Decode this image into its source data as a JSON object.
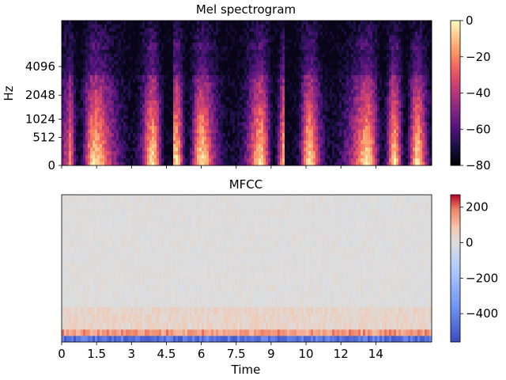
{
  "chart_data": [
    {
      "type": "heatmap",
      "title": "Mel spectrogram",
      "xlabel": "",
      "ylabel": "Hz",
      "yticks": [
        "0",
        "512",
        "1024",
        "2048",
        "4096"
      ],
      "yscale": "mel",
      "xlim": [
        0,
        15.9
      ],
      "colormap": "magma",
      "colorbar": {
        "range": [
          -80,
          0
        ],
        "ticks": [
          "0",
          "−20",
          "−40",
          "−60",
          "−80"
        ]
      },
      "description_hint": "speech energy concentrated below ~1 kHz with periodic bursts and gaps",
      "silent_intervals_s": [
        [
          4.35,
          4.75
        ],
        [
          9.55,
          10.0
        ]
      ]
    },
    {
      "type": "heatmap",
      "title": "MFCC",
      "xlabel": "Time",
      "ylabel": "",
      "xticks": [
        "0",
        "1.5",
        "3",
        "4.5",
        "6",
        "7.5",
        "9",
        "10",
        "12",
        "14"
      ],
      "xtick_values": [
        0,
        1.5,
        3,
        4.5,
        6,
        7.5,
        9,
        10.5,
        12,
        13.5
      ],
      "xlim": [
        0,
        15.9
      ],
      "colormap": "coolwarm",
      "colorbar": {
        "range": [
          -560,
          270
        ],
        "ticks": [
          "200",
          "0",
          "−200",
          "−400"
        ]
      },
      "coefficient_levels": {
        "c0": -450,
        "c1": 150,
        "c2_c4": 40,
        "higher": 5
      }
    }
  ],
  "colors": {
    "magma_low": "#000004",
    "magma_high": "#fcfdbf",
    "coolwarm_low": "#3b4cc0",
    "coolwarm_mid": "#dddddd",
    "coolwarm_high": "#b40426"
  }
}
